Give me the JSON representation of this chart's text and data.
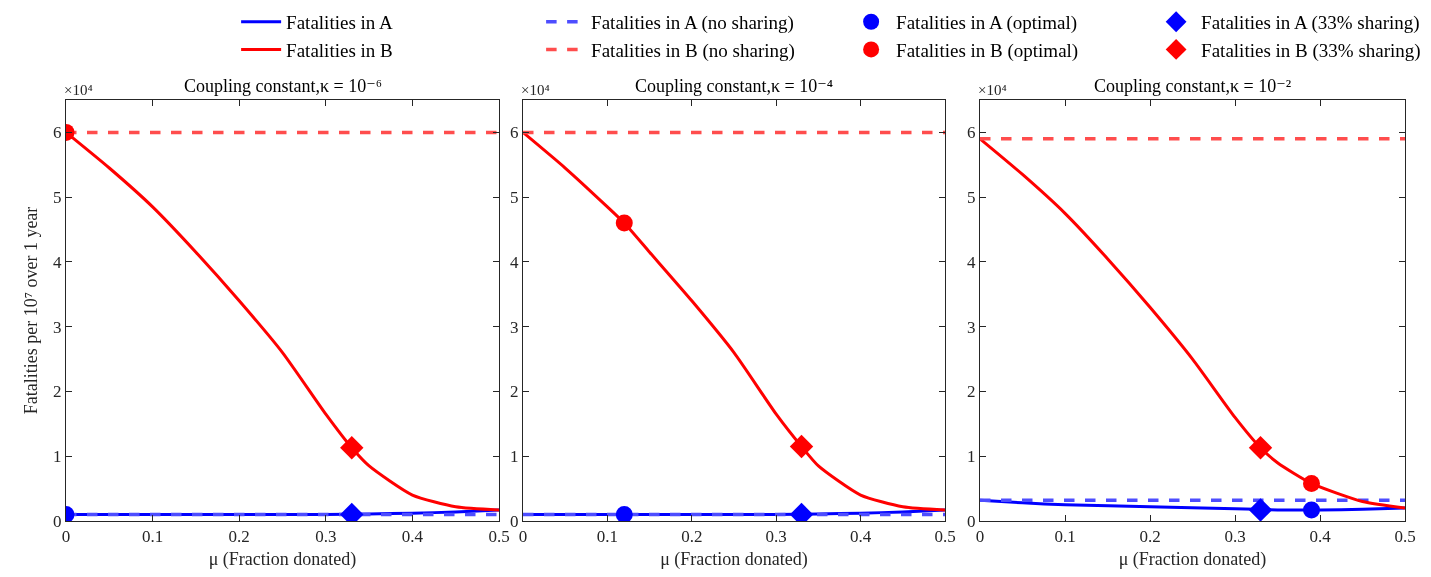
{
  "chart_data": [
    {
      "type": "line",
      "title": "Coupling constant,κ = 10⁻⁶",
      "xlabel": "μ (Fraction donated)",
      "ylabel": "Fatalities per 10⁷ over 1 year",
      "annotations": [
        "×10⁴"
      ],
      "xlim": [
        0,
        0.5
      ],
      "ylim": [
        0,
        6.5
      ],
      "xticks": [
        0,
        0.1,
        0.2,
        0.3,
        0.4,
        0.5
      ],
      "yticks": [
        0,
        1,
        2,
        3,
        4,
        5,
        6
      ],
      "grid": false,
      "legend": "top",
      "series": [
        {
          "name": "Fatalities in A",
          "type": "line",
          "line_style": "solid",
          "color": "#0000ff",
          "x": [
            0,
            0.1,
            0.2,
            0.3,
            0.35,
            0.4,
            0.45,
            0.5
          ],
          "values": [
            0.1,
            0.1,
            0.1,
            0.1,
            0.11,
            0.12,
            0.14,
            0.17
          ]
        },
        {
          "name": "Fatalities in A (no sharing)",
          "type": "line",
          "line_style": "dashed",
          "color": "#4d4dff",
          "x": [
            0,
            0.5
          ],
          "values": [
            0.1,
            0.1
          ]
        },
        {
          "name": "Fatalities in A (optimal)",
          "type": "scatter",
          "marker": "circle",
          "color": "#0000ff",
          "x": [
            0
          ],
          "values": [
            0.1
          ]
        },
        {
          "name": "Fatalities in A (33% sharing)",
          "type": "scatter",
          "marker": "diamond",
          "color": "#0000ff",
          "x": [
            0.33
          ],
          "values": [
            0.1
          ]
        },
        {
          "name": "Fatalities in B",
          "type": "line",
          "line_style": "solid",
          "color": "#ff0000",
          "x": [
            0,
            0.05,
            0.1,
            0.15,
            0.2,
            0.25,
            0.3,
            0.33,
            0.35,
            0.4,
            0.45,
            0.5
          ],
          "values": [
            6.0,
            5.45,
            4.85,
            4.15,
            3.4,
            2.6,
            1.65,
            1.13,
            0.85,
            0.4,
            0.22,
            0.17
          ]
        },
        {
          "name": "Fatalities in B (no sharing)",
          "type": "line",
          "line_style": "dashed",
          "color": "#ff4d4d",
          "x": [
            0,
            0.5
          ],
          "values": [
            6.0,
            6.0
          ]
        },
        {
          "name": "Fatalities in B (optimal)",
          "type": "scatter",
          "marker": "circle",
          "color": "#ff0000",
          "x": [
            0
          ],
          "values": [
            6.0
          ]
        },
        {
          "name": "Fatalities in B (33% sharing)",
          "type": "scatter",
          "marker": "diamond",
          "color": "#ff0000",
          "x": [
            0.33
          ],
          "values": [
            1.13
          ]
        }
      ]
    },
    {
      "type": "line",
      "title": "Coupling constant,κ = 10⁻⁴",
      "xlabel": "μ (Fraction donated)",
      "annotations": [
        "×10⁴"
      ],
      "xlim": [
        0,
        0.5
      ],
      "ylim": [
        0,
        6.5
      ],
      "xticks": [
        0,
        0.1,
        0.2,
        0.3,
        0.4,
        0.5
      ],
      "yticks": [
        0,
        1,
        2,
        3,
        4,
        5,
        6
      ],
      "grid": false,
      "series": [
        {
          "type": "line",
          "line_style": "solid",
          "color": "#0000ff",
          "x": [
            0,
            0.1,
            0.2,
            0.3,
            0.35,
            0.4,
            0.45,
            0.5
          ],
          "values": [
            0.1,
            0.1,
            0.1,
            0.1,
            0.11,
            0.12,
            0.14,
            0.17
          ]
        },
        {
          "type": "line",
          "line_style": "dashed",
          "color": "#4d4dff",
          "x": [
            0,
            0.5
          ],
          "values": [
            0.1,
            0.1
          ]
        },
        {
          "type": "scatter",
          "marker": "circle",
          "color": "#0000ff",
          "x": [
            0.12
          ],
          "values": [
            0.1
          ]
        },
        {
          "type": "scatter",
          "marker": "diamond",
          "color": "#0000ff",
          "x": [
            0.33
          ],
          "values": [
            0.1
          ]
        },
        {
          "type": "line",
          "line_style": "solid",
          "color": "#ff0000",
          "x": [
            0,
            0.05,
            0.1,
            0.12,
            0.15,
            0.2,
            0.25,
            0.3,
            0.33,
            0.35,
            0.4,
            0.45,
            0.5
          ],
          "values": [
            6.0,
            5.45,
            4.85,
            4.6,
            4.15,
            3.4,
            2.6,
            1.65,
            1.15,
            0.85,
            0.4,
            0.22,
            0.17
          ]
        },
        {
          "type": "line",
          "line_style": "dashed",
          "color": "#ff4d4d",
          "x": [
            0,
            0.5
          ],
          "values": [
            6.0,
            6.0
          ]
        },
        {
          "type": "scatter",
          "marker": "circle",
          "color": "#ff0000",
          "x": [
            0.12
          ],
          "values": [
            4.6
          ]
        },
        {
          "type": "scatter",
          "marker": "diamond",
          "color": "#ff0000",
          "x": [
            0.33
          ],
          "values": [
            1.15
          ]
        }
      ]
    },
    {
      "type": "line",
      "title": "Coupling constant,κ = 10⁻²",
      "xlabel": "μ (Fraction donated)",
      "annotations": [
        "×10⁴"
      ],
      "xlim": [
        0,
        0.5
      ],
      "ylim": [
        0,
        6.5
      ],
      "xticks": [
        0,
        0.1,
        0.2,
        0.3,
        0.4,
        0.5
      ],
      "yticks": [
        0,
        1,
        2,
        3,
        4,
        5,
        6
      ],
      "grid": false,
      "series": [
        {
          "type": "line",
          "line_style": "solid",
          "color": "#0000ff",
          "x": [
            0,
            0.05,
            0.1,
            0.2,
            0.3,
            0.35,
            0.4,
            0.45,
            0.5
          ],
          "values": [
            0.32,
            0.28,
            0.25,
            0.22,
            0.19,
            0.17,
            0.17,
            0.18,
            0.2
          ]
        },
        {
          "type": "line",
          "line_style": "dashed",
          "color": "#4d4dff",
          "x": [
            0,
            0.5
          ],
          "values": [
            0.32,
            0.32
          ]
        },
        {
          "type": "scatter",
          "marker": "circle",
          "color": "#0000ff",
          "x": [
            0.39
          ],
          "values": [
            0.17
          ]
        },
        {
          "type": "scatter",
          "marker": "diamond",
          "color": "#0000ff",
          "x": [
            0.33
          ],
          "values": [
            0.17
          ]
        },
        {
          "type": "line",
          "line_style": "solid",
          "color": "#ff0000",
          "x": [
            0,
            0.05,
            0.1,
            0.15,
            0.2,
            0.25,
            0.3,
            0.33,
            0.35,
            0.39,
            0.45,
            0.5
          ],
          "values": [
            5.9,
            5.35,
            4.75,
            4.05,
            3.3,
            2.5,
            1.6,
            1.13,
            0.9,
            0.58,
            0.3,
            0.2
          ]
        },
        {
          "type": "line",
          "line_style": "dashed",
          "color": "#ff4d4d",
          "x": [
            0,
            0.5
          ],
          "values": [
            5.9,
            5.9
          ]
        },
        {
          "type": "scatter",
          "marker": "circle",
          "color": "#ff0000",
          "x": [
            0.39
          ],
          "values": [
            0.58
          ]
        },
        {
          "type": "scatter",
          "marker": "diamond",
          "color": "#ff0000",
          "x": [
            0.33
          ],
          "values": [
            1.13
          ]
        }
      ]
    }
  ]
}
